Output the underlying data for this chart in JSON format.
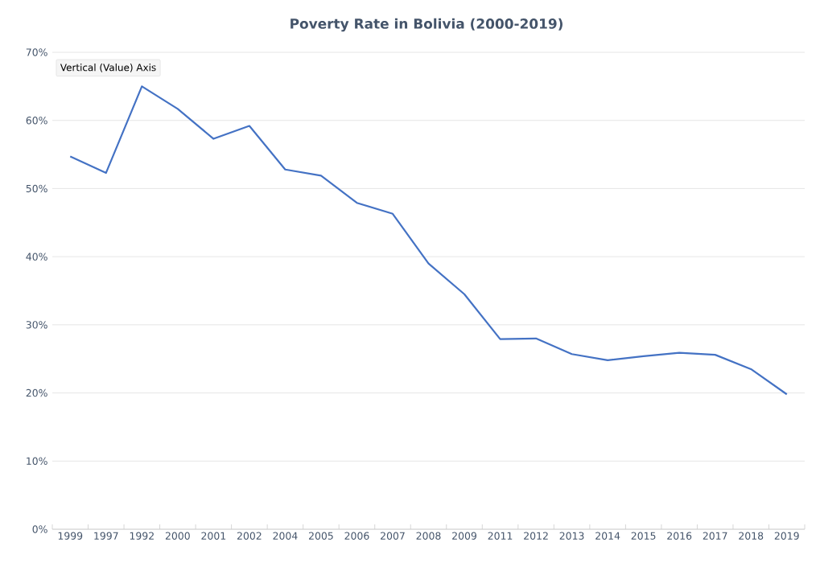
{
  "chart_data": {
    "type": "line",
    "title": "Poverty Rate in Bolivia (2000-2019)",
    "categories": [
      "1999",
      "1997",
      "1992",
      "2000",
      "2001",
      "2002",
      "2004",
      "2005",
      "2006",
      "2007",
      "2008",
      "2009",
      "2011",
      "2012",
      "2013",
      "2014",
      "2015",
      "2016",
      "2017",
      "2018",
      "2019"
    ],
    "series": [
      {
        "color": "#4472c4",
        "values": [
          54.7,
          52.3,
          65.0,
          61.7,
          57.3,
          59.2,
          52.8,
          51.9,
          47.9,
          46.3,
          39.0,
          34.5,
          27.9,
          28.0,
          25.7,
          24.8,
          25.4,
          25.9,
          25.6,
          23.5,
          19.8
        ]
      }
    ],
    "ylim": [
      0,
      70
    ],
    "yticks": [
      {
        "value": 0,
        "label": "0%"
      },
      {
        "value": 10,
        "label": "10%"
      },
      {
        "value": 20,
        "label": "20%"
      },
      {
        "value": 30,
        "label": "30%"
      },
      {
        "value": 40,
        "label": "40%"
      },
      {
        "value": 50,
        "label": "50%"
      },
      {
        "value": 60,
        "label": "60%"
      },
      {
        "value": 70,
        "label": "70%"
      }
    ],
    "grid": "y",
    "marker": "none",
    "line_style": "solid",
    "annotations": [
      "Vertical (Value) Axis"
    ]
  }
}
